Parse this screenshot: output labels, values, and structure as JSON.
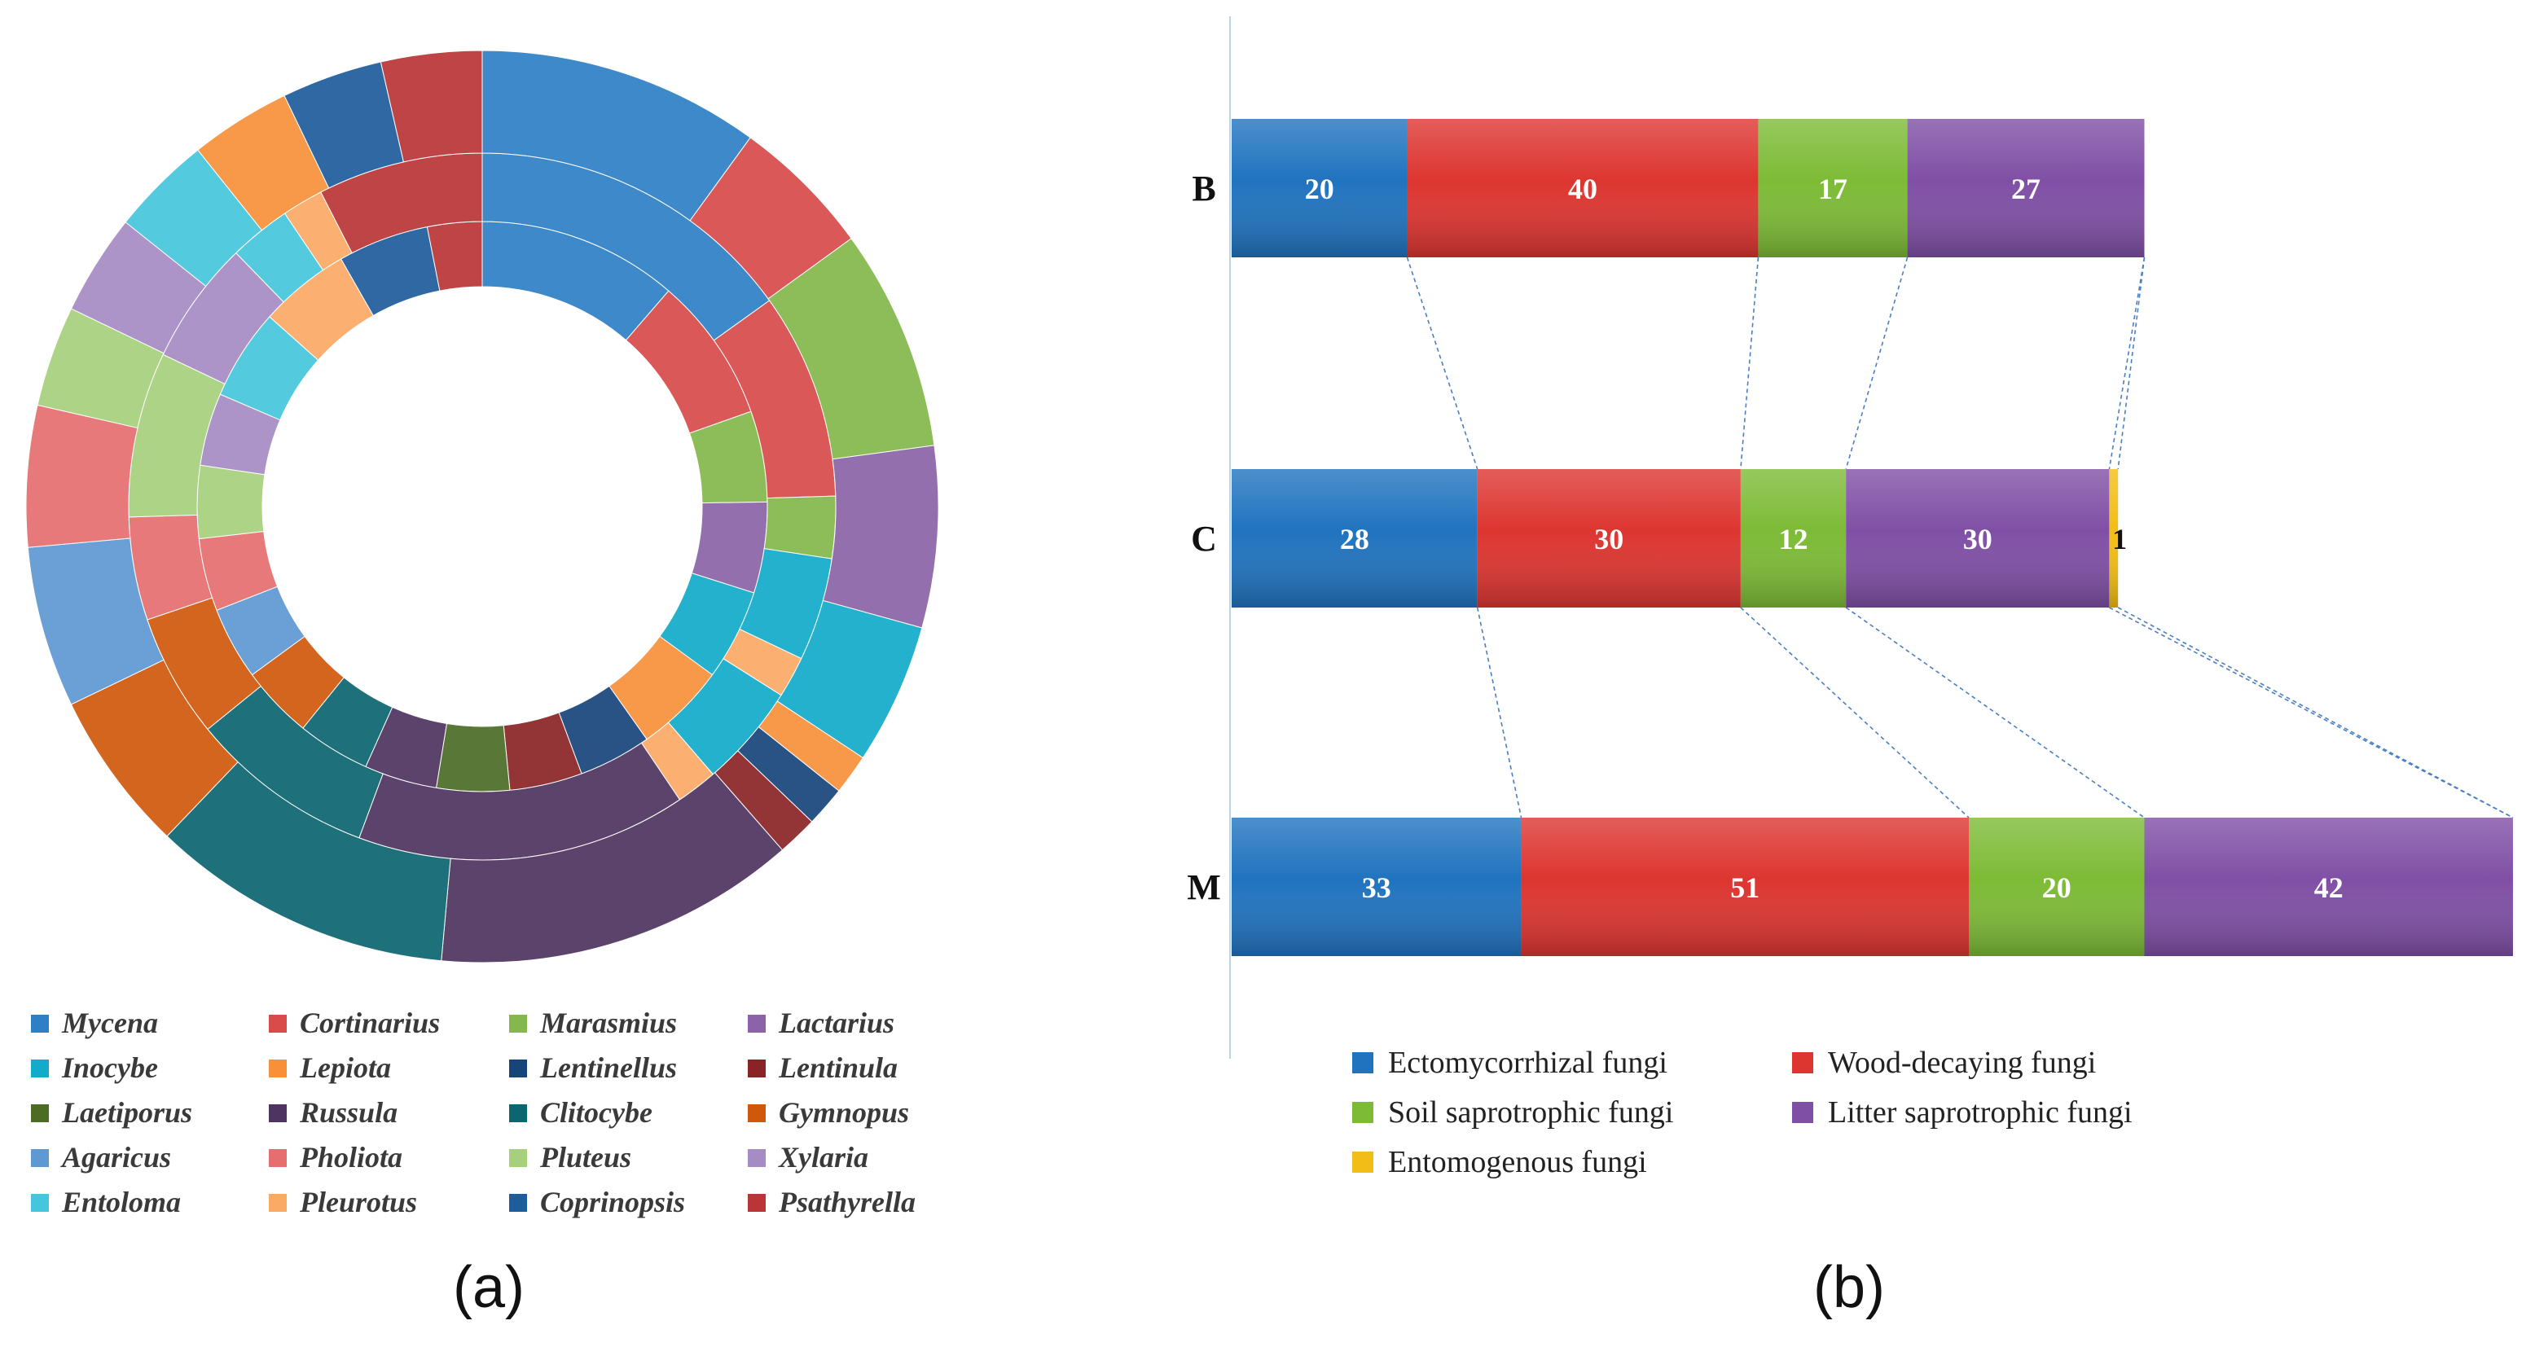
{
  "chart_data": [
    {
      "type": "pie",
      "subtype": "multi-ring donut",
      "panel_label": "(a)",
      "legend_position": "bottom",
      "colors": {
        "Mycena": "#2e80c6",
        "Cortinarius": "#d94a4a",
        "Marasmius": "#84b84c",
        "Lactarius": "#8c63a8",
        "Inocybe": "#12abc9",
        "Lepiota": "#f8903a",
        "Lentinellus": "#17457a",
        "Lentinula": "#8a2326",
        "Laetiporus": "#4c6c26",
        "Russula": "#4e3460",
        "Clitocybe": "#0b6670",
        "Gymnopus": "#d0580c",
        "Agaricus": "#5e99d2",
        "Pholiota": "#e76e70",
        "Pluteus": "#a7d07c",
        "Xylaria": "#a68cc4",
        "Entoloma": "#45c6dc",
        "Pleurotus": "#fbaa66",
        "Coprinopsis": "#1e5c9b",
        "Psathyrella": "#b93537"
      },
      "legend": [
        "Mycena",
        "Cortinarius",
        "Marasmius",
        "Lactarius",
        "Inocybe",
        "Lepiota",
        "Lentinellus",
        "Lentinula",
        "Laetiporus",
        "Russula",
        "Clitocybe",
        "Gymnopus",
        "Agaricus",
        "Pholiota",
        "Pluteus",
        "Xylaria",
        "Entoloma",
        "Pleurotus",
        "Coprinopsis",
        "Psathyrella"
      ],
      "rings": [
        {
          "name": "inner",
          "slices": [
            {
              "genus": "Mycena",
              "value": 11
            },
            {
              "genus": "Cortinarius",
              "value": 8
            },
            {
              "genus": "Marasmius",
              "value": 5
            },
            {
              "genus": "Lactarius",
              "value": 5
            },
            {
              "genus": "Inocybe",
              "value": 5
            },
            {
              "genus": "Lepiota",
              "value": 5
            },
            {
              "genus": "Lentinellus",
              "value": 4
            },
            {
              "genus": "Lentinula",
              "value": 4
            },
            {
              "genus": "Laetiporus",
              "value": 4
            },
            {
              "genus": "Russula",
              "value": 4
            },
            {
              "genus": "Clitocybe",
              "value": 4
            },
            {
              "genus": "Gymnopus",
              "value": 4
            },
            {
              "genus": "Agaricus",
              "value": 4
            },
            {
              "genus": "Pholiota",
              "value": 4
            },
            {
              "genus": "Pluteus",
              "value": 4
            },
            {
              "genus": "Xylaria",
              "value": 4
            },
            {
              "genus": "Entoloma",
              "value": 5
            },
            {
              "genus": "Pleurotus",
              "value": 5
            },
            {
              "genus": "Coprinopsis",
              "value": 5
            },
            {
              "genus": "Psathyrella",
              "value": 3
            }
          ]
        },
        {
          "name": "middle",
          "slices": [
            {
              "genus": "Mycena",
              "value": 16
            },
            {
              "genus": "Cortinarius",
              "value": 10
            },
            {
              "genus": "Marasmius",
              "value": 3
            },
            {
              "genus": "Inocybe",
              "value": 5
            },
            {
              "genus": "Pleurotus",
              "value": 2
            },
            {
              "genus": "Inocybe",
              "value": 5
            },
            {
              "genus": "Pleurotus",
              "value": 2
            },
            {
              "genus": "Russula",
              "value": 16
            },
            {
              "genus": "Clitocybe",
              "value": 9
            },
            {
              "genus": "Gymnopus",
              "value": 6
            },
            {
              "genus": "Pholiota",
              "value": 5
            },
            {
              "genus": "Pluteus",
              "value": 8
            },
            {
              "genus": "Xylaria",
              "value": 6
            },
            {
              "genus": "Entoloma",
              "value": 3
            },
            {
              "genus": "Pleurotus",
              "value": 2
            },
            {
              "genus": "Psathyrella",
              "value": 8
            }
          ]
        },
        {
          "name": "outer",
          "slices": [
            {
              "genus": "Mycena",
              "value": 14
            },
            {
              "genus": "Cortinarius",
              "value": 7
            },
            {
              "genus": "Marasmius",
              "value": 11
            },
            {
              "genus": "Lactarius",
              "value": 9
            },
            {
              "genus": "Inocybe",
              "value": 7
            },
            {
              "genus": "Lepiota",
              "value": 2
            },
            {
              "genus": "Lentinellus",
              "value": 2
            },
            {
              "genus": "Lentinula",
              "value": 2
            },
            {
              "genus": "Russula",
              "value": 18
            },
            {
              "genus": "Clitocybe",
              "value": 15
            },
            {
              "genus": "Gymnopus",
              "value": 8
            },
            {
              "genus": "Agaricus",
              "value": 8
            },
            {
              "genus": "Pholiota",
              "value": 7
            },
            {
              "genus": "Pluteus",
              "value": 5
            },
            {
              "genus": "Xylaria",
              "value": 5
            },
            {
              "genus": "Entoloma",
              "value": 5
            },
            {
              "genus": "Lepiota",
              "value": 5
            },
            {
              "genus": "Coprinopsis",
              "value": 5
            },
            {
              "genus": "Psathyrella",
              "value": 5
            }
          ]
        }
      ]
    },
    {
      "type": "bar",
      "subtype": "horizontal stacked",
      "panel_label": "(b)",
      "categories": [
        "B",
        "C",
        "M"
      ],
      "legend_position": "bottom",
      "series": [
        {
          "name": "Ectomycorrhizal fungi",
          "color": "#2073bf",
          "values": [
            20,
            28,
            33
          ]
        },
        {
          "name": "Wood-decaying fungi",
          "color": "#dd3530",
          "values": [
            40,
            30,
            51
          ]
        },
        {
          "name": "Soil saprotrophic fungi",
          "color": "#7dbb36",
          "values": [
            17,
            12,
            20
          ]
        },
        {
          "name": "Litter saprotrophic fungi",
          "color": "#7f4fa5",
          "values": [
            27,
            30,
            42
          ]
        },
        {
          "name": "Entomogenous fungi",
          "color": "#f2bd16",
          "values": [
            0,
            1,
            0
          ]
        }
      ],
      "legend_order": [
        "Ectomycorrhizal fungi",
        "Wood-decaying fungi",
        "Soil saprotrophic fungi",
        "Litter saprotrophic fungi",
        "Entomogenous fungi"
      ],
      "xlim": [
        0,
        146
      ]
    }
  ]
}
